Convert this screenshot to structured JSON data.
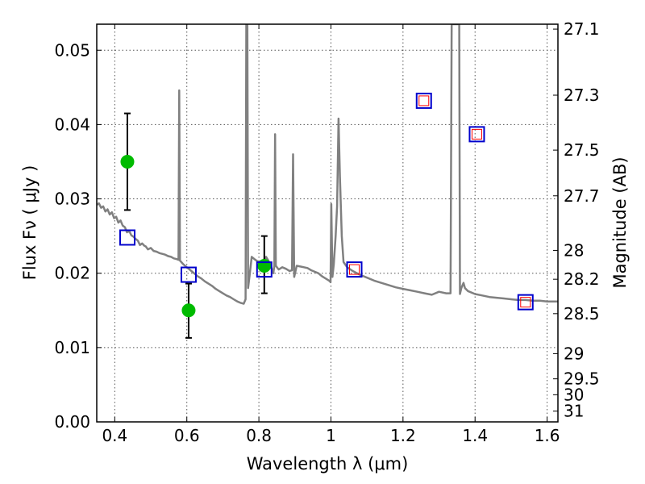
{
  "chart_data": {
    "type": "scatter",
    "xlabel": "Wavelength  λ (μm)",
    "ylabel": "Flux  Fν  ( μJy )",
    "ylabel_right": "Magnitude (AB)",
    "xlim": [
      0.35,
      1.63
    ],
    "ylim": [
      0.0,
      0.0535
    ],
    "grid": true,
    "x_ticks": [
      0.4,
      0.6,
      0.8,
      1.0,
      1.2,
      1.4,
      1.6
    ],
    "x_tick_labels": [
      "0.4",
      "0.6",
      "0.8",
      "1",
      "1.2",
      "1.4",
      "1.6"
    ],
    "y_ticks": [
      0.0,
      0.01,
      0.02,
      0.03,
      0.04,
      0.05
    ],
    "y_tick_labels": [
      "0.00",
      "0.01",
      "0.02",
      "0.03",
      "0.04",
      "0.05"
    ],
    "right_ticks": [
      {
        "label": "27.1",
        "flux": 0.05284
      },
      {
        "label": "27.3",
        "flux": 0.04395
      },
      {
        "label": "27.5",
        "flux": 0.03656
      },
      {
        "label": "27.7",
        "flux": 0.03041
      },
      {
        "label": "28",
        "flux": 0.02307
      },
      {
        "label": "28.2",
        "flux": 0.01919
      },
      {
        "label": "28.5",
        "flux": 0.01456
      },
      {
        "label": "29",
        "flux": 0.00918
      },
      {
        "label": "29.5",
        "flux": 0.00579
      },
      {
        "label": "30",
        "flux": 0.00365
      },
      {
        "label": "31",
        "flux": 0.00145
      }
    ],
    "series": [
      {
        "kind": "spectrum",
        "color": "#808080",
        "points": [
          [
            0.35,
            0.0292
          ],
          [
            0.356,
            0.0294
          ],
          [
            0.362,
            0.0288
          ],
          [
            0.368,
            0.029
          ],
          [
            0.374,
            0.0283
          ],
          [
            0.38,
            0.0286
          ],
          [
            0.386,
            0.0279
          ],
          [
            0.392,
            0.0282
          ],
          [
            0.398,
            0.0274
          ],
          [
            0.404,
            0.0276
          ],
          [
            0.41,
            0.0268
          ],
          [
            0.416,
            0.0271
          ],
          [
            0.422,
            0.0264
          ],
          [
            0.428,
            0.0262
          ],
          [
            0.434,
            0.0255
          ],
          [
            0.44,
            0.0257
          ],
          [
            0.446,
            0.0251
          ],
          [
            0.452,
            0.0249
          ],
          [
            0.458,
            0.0246
          ],
          [
            0.464,
            0.0244
          ],
          [
            0.47,
            0.0238
          ],
          [
            0.476,
            0.024
          ],
          [
            0.482,
            0.0237
          ],
          [
            0.486,
            0.0236
          ],
          [
            0.492,
            0.0232
          ],
          [
            0.5,
            0.0234
          ],
          [
            0.508,
            0.023
          ],
          [
            0.516,
            0.0229
          ],
          [
            0.524,
            0.0227
          ],
          [
            0.532,
            0.0226
          ],
          [
            0.54,
            0.0225
          ],
          [
            0.548,
            0.0223
          ],
          [
            0.556,
            0.0222
          ],
          [
            0.564,
            0.022
          ],
          [
            0.572,
            0.0219
          ],
          [
            0.577,
            0.0218
          ],
          [
            0.579,
            0.0446
          ],
          [
            0.581,
            0.0217
          ],
          [
            0.59,
            0.0212
          ],
          [
            0.6,
            0.0208
          ],
          [
            0.61,
            0.0204
          ],
          [
            0.62,
            0.02
          ],
          [
            0.63,
            0.0196
          ],
          [
            0.64,
            0.0193
          ],
          [
            0.65,
            0.0189
          ],
          [
            0.66,
            0.0186
          ],
          [
            0.67,
            0.0183
          ],
          [
            0.68,
            0.0179
          ],
          [
            0.69,
            0.0176
          ],
          [
            0.7,
            0.0173
          ],
          [
            0.71,
            0.017
          ],
          [
            0.72,
            0.0168
          ],
          [
            0.73,
            0.0165
          ],
          [
            0.74,
            0.0162
          ],
          [
            0.75,
            0.016
          ],
          [
            0.758,
            0.0159
          ],
          [
            0.763,
            0.0165
          ],
          [
            0.765,
            0.0535
          ],
          [
            0.768,
            0.0535
          ],
          [
            0.77,
            0.018
          ],
          [
            0.775,
            0.02
          ],
          [
            0.78,
            0.0222
          ],
          [
            0.79,
            0.0218
          ],
          [
            0.8,
            0.0215
          ],
          [
            0.81,
            0.0216
          ],
          [
            0.82,
            0.0222
          ],
          [
            0.83,
            0.0214
          ],
          [
            0.84,
            0.02
          ],
          [
            0.843,
            0.021
          ],
          [
            0.845,
            0.0387
          ],
          [
            0.847,
            0.021
          ],
          [
            0.855,
            0.0205
          ],
          [
            0.865,
            0.0208
          ],
          [
            0.875,
            0.0206
          ],
          [
            0.885,
            0.0203
          ],
          [
            0.892,
            0.0204
          ],
          [
            0.895,
            0.036
          ],
          [
            0.898,
            0.0195
          ],
          [
            0.905,
            0.021
          ],
          [
            0.915,
            0.0209
          ],
          [
            0.925,
            0.0208
          ],
          [
            0.935,
            0.0207
          ],
          [
            0.945,
            0.0204
          ],
          [
            0.955,
            0.0202
          ],
          [
            0.965,
            0.02
          ],
          [
            0.975,
            0.0196
          ],
          [
            0.985,
            0.0193
          ],
          [
            0.995,
            0.019
          ],
          [
            0.999,
            0.0188
          ],
          [
            1.001,
            0.0293
          ],
          [
            1.004,
            0.0195
          ],
          [
            1.008,
            0.0212
          ],
          [
            1.013,
            0.025
          ],
          [
            1.017,
            0.029
          ],
          [
            1.021,
            0.0408
          ],
          [
            1.025,
            0.033
          ],
          [
            1.03,
            0.025
          ],
          [
            1.035,
            0.0215
          ],
          [
            1.045,
            0.0208
          ],
          [
            1.06,
            0.0203
          ],
          [
            1.08,
            0.0198
          ],
          [
            1.1,
            0.0194
          ],
          [
            1.12,
            0.019
          ],
          [
            1.14,
            0.0187
          ],
          [
            1.16,
            0.0184
          ],
          [
            1.18,
            0.0181
          ],
          [
            1.2,
            0.0179
          ],
          [
            1.22,
            0.0177
          ],
          [
            1.24,
            0.0175
          ],
          [
            1.26,
            0.0173
          ],
          [
            1.28,
            0.0171
          ],
          [
            1.3,
            0.0175
          ],
          [
            1.32,
            0.0173
          ],
          [
            1.332,
            0.0173
          ],
          [
            1.335,
            0.0535
          ],
          [
            1.34,
            0.0535
          ],
          [
            1.345,
            0.0535
          ],
          [
            1.352,
            0.0535
          ],
          [
            1.356,
            0.0535
          ],
          [
            1.358,
            0.0172
          ],
          [
            1.362,
            0.018
          ],
          [
            1.368,
            0.0187
          ],
          [
            1.372,
            0.018
          ],
          [
            1.38,
            0.0176
          ],
          [
            1.4,
            0.0172
          ],
          [
            1.42,
            0.017
          ],
          [
            1.44,
            0.0168
          ],
          [
            1.46,
            0.0167
          ],
          [
            1.48,
            0.0166
          ],
          [
            1.5,
            0.0165
          ],
          [
            1.52,
            0.0164
          ],
          [
            1.54,
            0.0164
          ],
          [
            1.56,
            0.0163
          ],
          [
            1.58,
            0.0163
          ],
          [
            1.6,
            0.0162
          ],
          [
            1.63,
            0.0162
          ]
        ]
      },
      {
        "kind": "observed",
        "color": "#00bb00",
        "points": [
          {
            "x": 0.435,
            "y": 0.035,
            "yerr_low": 0.0285,
            "yerr_high": 0.0415
          },
          {
            "x": 0.605,
            "y": 0.015,
            "yerr_low": 0.0113,
            "yerr_high": 0.0186
          },
          {
            "x": 0.815,
            "y": 0.021,
            "yerr_low": 0.0173,
            "yerr_high": 0.025
          }
        ]
      },
      {
        "kind": "model_blue",
        "color": "#0000cc",
        "points": [
          {
            "x": 0.435,
            "y": 0.0248
          },
          {
            "x": 0.605,
            "y": 0.0198
          },
          {
            "x": 0.815,
            "y": 0.0205
          },
          {
            "x": 1.065,
            "y": 0.0205
          },
          {
            "x": 1.258,
            "y": 0.0432
          },
          {
            "x": 1.405,
            "y": 0.0387
          },
          {
            "x": 1.54,
            "y": 0.0161
          }
        ]
      },
      {
        "kind": "model_red",
        "color": "#ff0000",
        "points": [
          {
            "x": 1.065,
            "y": 0.0205
          },
          {
            "x": 1.258,
            "y": 0.0432
          },
          {
            "x": 1.405,
            "y": 0.0387
          },
          {
            "x": 1.54,
            "y": 0.0161
          }
        ]
      }
    ]
  }
}
